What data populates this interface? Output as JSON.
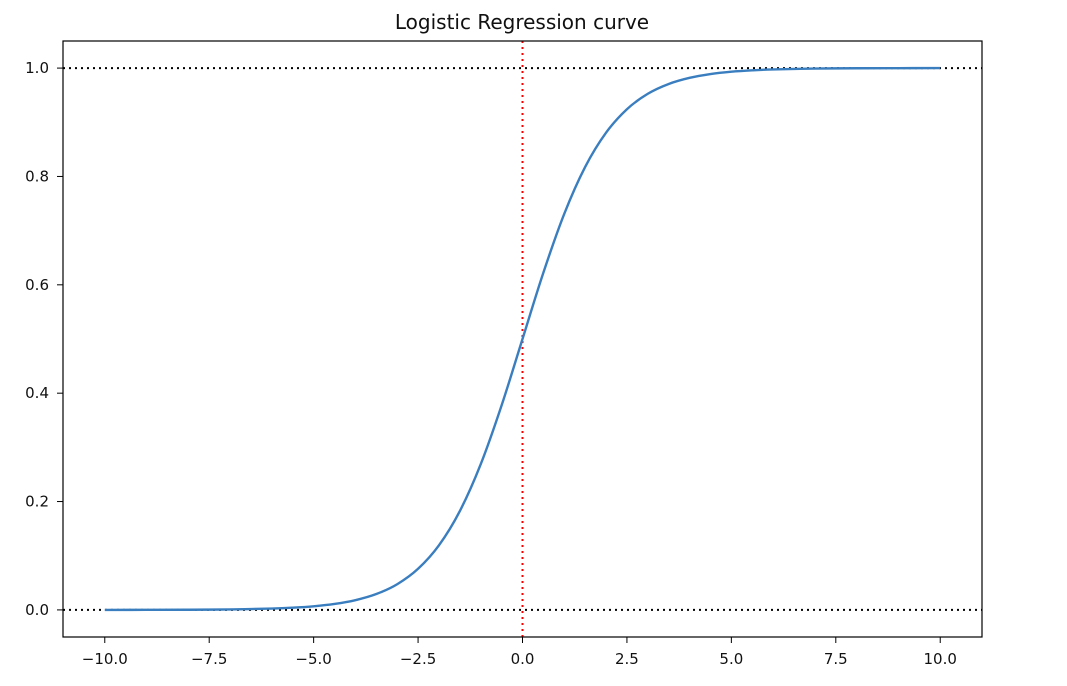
{
  "chart_data": {
    "type": "line",
    "title": "Logistic Regression curve",
    "xlabel": "",
    "ylabel": "",
    "xlim": [
      -11.0,
      11.0
    ],
    "ylim": [
      -0.05,
      1.05
    ],
    "x_ticks": [
      -10.0,
      -7.5,
      -5.0,
      -2.5,
      0.0,
      2.5,
      5.0,
      7.5,
      10.0
    ],
    "x_tick_labels": [
      "−10.0",
      "−7.5",
      "−5.0",
      "−2.5",
      "0.0",
      "2.5",
      "5.0",
      "7.5",
      "10.0"
    ],
    "y_ticks": [
      0.0,
      0.2,
      0.4,
      0.6,
      0.8,
      1.0
    ],
    "y_tick_labels": [
      "0.0",
      "0.2",
      "0.4",
      "0.6",
      "0.8",
      "1.0"
    ],
    "grid": false,
    "legend": "none",
    "series": [
      {
        "color": "#3a7ebf",
        "x": [
          -10.0,
          -9.0,
          -8.0,
          -7.0,
          -6.0,
          -5.5,
          -5.0,
          -4.5,
          -4.0,
          -3.5,
          -3.0,
          -2.5,
          -2.0,
          -1.5,
          -1.0,
          -0.5,
          0.0,
          0.5,
          1.0,
          1.5,
          2.0,
          2.5,
          3.0,
          3.5,
          4.0,
          4.5,
          5.0,
          5.5,
          6.0,
          7.0,
          8.0,
          9.0,
          10.0
        ],
        "y": [
          0.0,
          0.0001,
          0.0003,
          0.0009,
          0.0025,
          0.0041,
          0.0067,
          0.011,
          0.018,
          0.0293,
          0.0474,
          0.0759,
          0.1192,
          0.1824,
          0.2689,
          0.3775,
          0.5,
          0.6225,
          0.7311,
          0.8176,
          0.8808,
          0.9241,
          0.9526,
          0.9707,
          0.982,
          0.989,
          0.9933,
          0.9959,
          0.9975,
          0.9991,
          0.9997,
          0.9999,
          1.0
        ]
      }
    ],
    "reference_lines": [
      {
        "orientation": "horizontal",
        "value": 1.0,
        "color": "#000000",
        "style": "dotted"
      },
      {
        "orientation": "horizontal",
        "value": 0.0,
        "color": "#000000",
        "style": "dotted"
      },
      {
        "orientation": "vertical",
        "value": 0.0,
        "color": "#ff0000",
        "style": "dotted"
      }
    ]
  }
}
